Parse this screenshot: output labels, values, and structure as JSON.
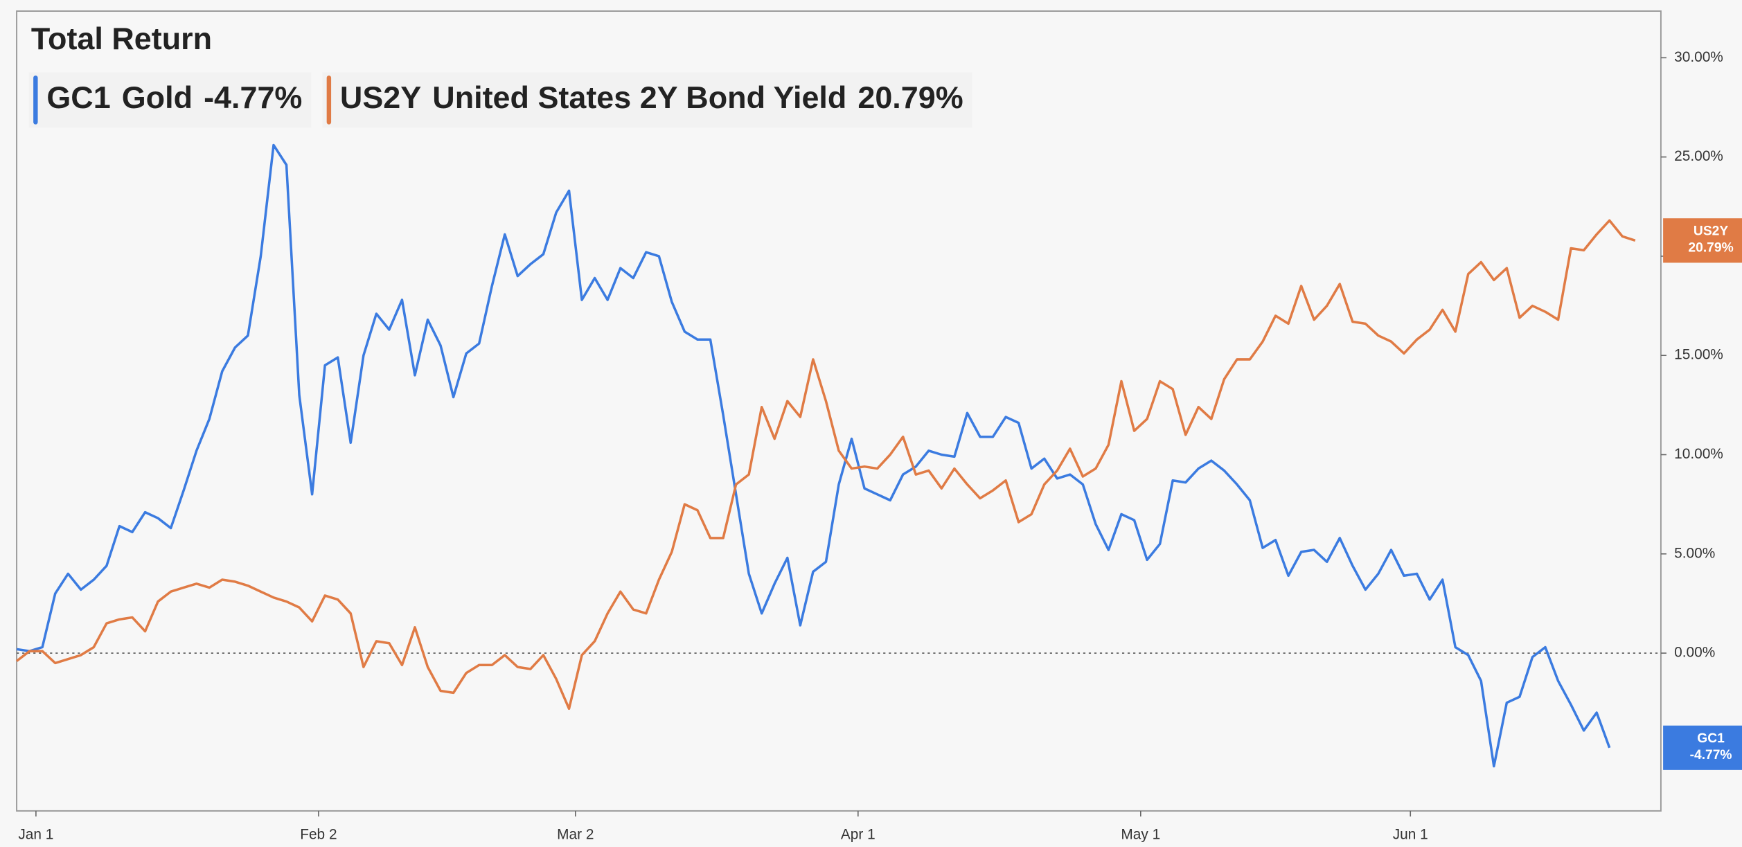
{
  "chart_data": {
    "type": "line",
    "title": "Total Return",
    "xlim": [
      0,
      128
    ],
    "xticks": [
      {
        "value": 1.5,
        "label": "Jan 1"
      },
      {
        "value": 23.5,
        "label": "Feb 2"
      },
      {
        "value": 43.5,
        "label": "Mar 2"
      },
      {
        "value": 65.5,
        "label": "Apr 1"
      },
      {
        "value": 87.5,
        "label": "May 1"
      },
      {
        "value": 108.5,
        "label": "Jun 1"
      }
    ],
    "ylim": [
      -7.95,
      32.35
    ],
    "yticks": [
      {
        "value": 0,
        "label": "0.00%"
      },
      {
        "value": 5,
        "label": "5.00%"
      },
      {
        "value": 10,
        "label": "10.00%"
      },
      {
        "value": 15,
        "label": "15.00%"
      },
      {
        "value": 20,
        "label": "20.00%"
      },
      {
        "value": 25,
        "label": "25.00%"
      },
      {
        "value": 30,
        "label": "30.00%"
      }
    ],
    "series": [
      {
        "symbol": "GC1",
        "name": "Gold",
        "last_label": "-4.77%",
        "color": "#3b7be0",
        "values": [
          0.2,
          0.1,
          0.3,
          3.0,
          4.0,
          3.2,
          3.7,
          4.4,
          6.4,
          6.1,
          7.1,
          6.8,
          6.3,
          8.2,
          10.2,
          11.8,
          14.2,
          15.4,
          16.0,
          20.0,
          25.6,
          24.6,
          13.0,
          8.0,
          14.5,
          14.9,
          10.6,
          15.0,
          17.1,
          16.3,
          17.8,
          14.0,
          16.8,
          15.5,
          12.9,
          15.1,
          15.6,
          18.5,
          21.1,
          19.0,
          19.6,
          20.1,
          22.2,
          23.3,
          17.8,
          18.9,
          17.8,
          19.4,
          18.9,
          20.2,
          20.0,
          17.7,
          16.2,
          15.8,
          15.8,
          12.0,
          8.0,
          4.0,
          2.0,
          3.5,
          4.8,
          1.4,
          4.1,
          4.6,
          8.5,
          10.8,
          8.3,
          8.0,
          7.7,
          9.0,
          9.4,
          10.2,
          10.0,
          9.9,
          12.1,
          10.9,
          10.9,
          11.9,
          11.6,
          9.3,
          9.8,
          8.8,
          9.0,
          8.5,
          6.5,
          5.2,
          7.0,
          6.7,
          4.7,
          5.5,
          8.7,
          8.6,
          9.3,
          9.7,
          9.2,
          8.5,
          7.7,
          5.3,
          5.7,
          3.9,
          5.1,
          5.2,
          4.6,
          5.8,
          4.4,
          3.2,
          4.0,
          5.2,
          3.9,
          4.0,
          2.7,
          3.7,
          0.3,
          -0.1,
          -1.4,
          -5.7,
          -2.5,
          -2.2,
          -0.2,
          0.3,
          -1.4,
          -2.6,
          -3.9,
          -3.0,
          -4.77
        ]
      },
      {
        "symbol": "US2Y",
        "name": "United States 2Y Bond Yield",
        "last_label": "20.79%",
        "color": "#e07b45",
        "values": [
          -0.4,
          0.1,
          0.1,
          -0.5,
          -0.3,
          -0.1,
          0.3,
          1.5,
          1.7,
          1.8,
          1.1,
          2.6,
          3.1,
          3.3,
          3.5,
          3.3,
          3.7,
          3.6,
          3.4,
          3.1,
          2.8,
          2.6,
          2.3,
          1.6,
          2.9,
          2.7,
          2.0,
          -0.7,
          0.6,
          0.5,
          -0.6,
          1.3,
          -0.7,
          -1.9,
          -2.0,
          -1.0,
          -0.6,
          -0.6,
          -0.1,
          -0.7,
          -0.8,
          -0.1,
          -1.3,
          -2.8,
          -0.1,
          0.6,
          2.0,
          3.1,
          2.2,
          2.0,
          3.7,
          5.1,
          7.5,
          7.2,
          5.8,
          5.8,
          8.5,
          9.0,
          12.4,
          10.8,
          12.7,
          11.9,
          14.8,
          12.7,
          10.2,
          9.3,
          9.4,
          9.3,
          10.0,
          10.9,
          9.0,
          9.2,
          8.3,
          9.3,
          8.5,
          7.8,
          8.2,
          8.7,
          6.6,
          7.0,
          8.5,
          9.2,
          10.3,
          8.9,
          9.3,
          10.5,
          13.7,
          11.2,
          11.8,
          13.7,
          13.3,
          11.0,
          12.4,
          11.8,
          13.8,
          14.8,
          14.8,
          15.7,
          17.0,
          16.6,
          18.5,
          16.8,
          17.5,
          18.6,
          16.7,
          16.6,
          16.0,
          15.7,
          15.1,
          15.8,
          16.3,
          17.3,
          16.2,
          19.1,
          19.7,
          18.8,
          19.4,
          16.9,
          17.5,
          17.2,
          16.8,
          20.4,
          20.3,
          21.1,
          21.8,
          21.0,
          20.79
        ]
      }
    ]
  }
}
